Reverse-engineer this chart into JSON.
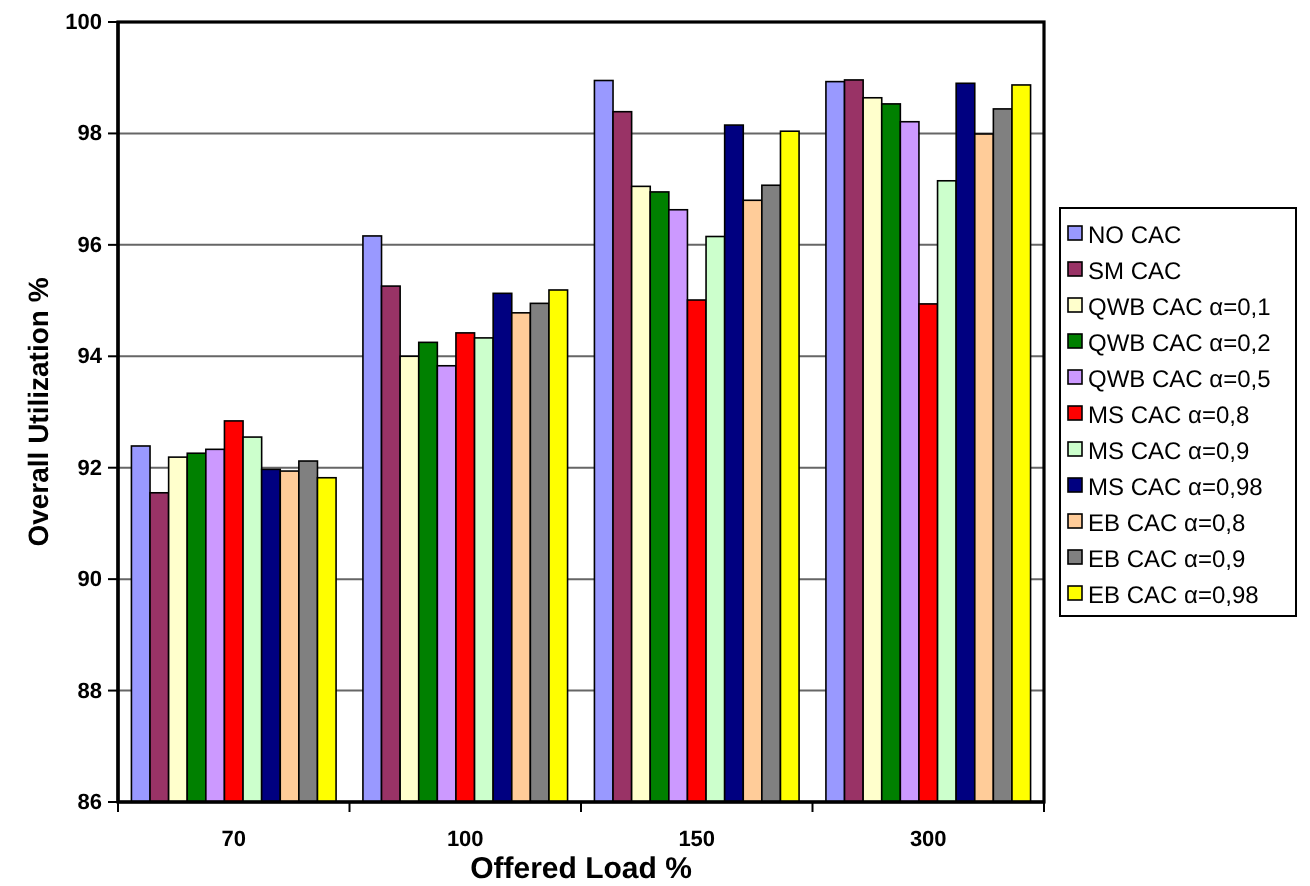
{
  "chart_data": {
    "type": "bar",
    "xlabel": "Offered Load %",
    "ylabel": "Overall Utilization %",
    "categories": [
      "70",
      "100",
      "150",
      "300"
    ],
    "ylim": [
      86,
      100
    ],
    "yticks": [
      86,
      88,
      90,
      92,
      94,
      96,
      98,
      100
    ],
    "grid": "y",
    "legend": "right",
    "series": [
      {
        "name": "NO CAC",
        "color": "#9999ff",
        "values": [
          92.39,
          96.16,
          98.95,
          98.93
        ]
      },
      {
        "name": "SM CAC",
        "color": "#993366",
        "values": [
          91.55,
          95.26,
          98.39,
          98.96
        ]
      },
      {
        "name": "QWB CAC α=0,1",
        "color": "#ffffcc",
        "values": [
          92.19,
          94.0,
          97.05,
          98.64
        ]
      },
      {
        "name": "QWB CAC α=0,2",
        "color": "#008000",
        "values": [
          92.26,
          94.25,
          96.95,
          98.53
        ]
      },
      {
        "name": "QWB CAC α=0,5",
        "color": "#cc99ff",
        "values": [
          92.33,
          93.83,
          96.63,
          98.21
        ]
      },
      {
        "name": "MS CAC α=0,8",
        "color": "#ff0000",
        "values": [
          92.84,
          94.42,
          95.01,
          94.94
        ]
      },
      {
        "name": "MS CAC α=0,9",
        "color": "#ccffcc",
        "values": [
          92.55,
          94.33,
          96.15,
          97.15
        ]
      },
      {
        "name": "MS CAC α=0,98",
        "color": "#000080",
        "values": [
          91.97,
          95.13,
          98.15,
          98.9
        ]
      },
      {
        "name": "EB CAC α=0,8",
        "color": "#ffcc99",
        "values": [
          91.94,
          94.78,
          96.8,
          97.99
        ]
      },
      {
        "name": "EB CAC α=0,9",
        "color": "#808080",
        "values": [
          92.12,
          94.95,
          97.07,
          98.44
        ]
      },
      {
        "name": "EB CAC α=0,98",
        "color": "#ffff00",
        "values": [
          91.82,
          95.19,
          98.04,
          98.87
        ]
      }
    ]
  }
}
